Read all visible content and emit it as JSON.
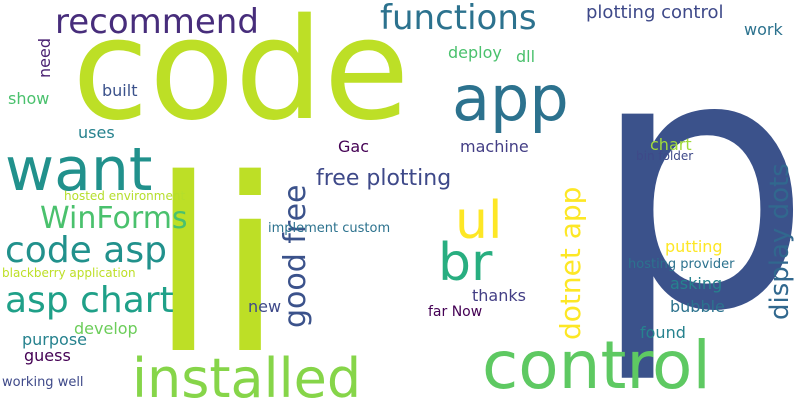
{
  "words": [
    {
      "text": "p",
      "color": "#3b528b"
    },
    {
      "text": "li",
      "color": "#bddf26"
    },
    {
      "text": "code",
      "color": "#bddf26"
    },
    {
      "text": "control",
      "color": "#5ec962"
    },
    {
      "text": "app",
      "color": "#2c728e"
    },
    {
      "text": "want",
      "color": "#21918c"
    },
    {
      "text": "installed",
      "color": "#86d549"
    },
    {
      "text": "ul",
      "color": "#fde725"
    },
    {
      "text": "br",
      "color": "#28ae80"
    },
    {
      "text": "functions",
      "color": "#2c728e"
    },
    {
      "text": "recommend",
      "color": "#472d7b"
    },
    {
      "text": "code asp",
      "color": "#21918c"
    },
    {
      "text": "asp chart",
      "color": "#1fa088"
    },
    {
      "text": "WinForms",
      "color": "#4ac16d"
    },
    {
      "text": "dotnet app",
      "color": "#fde725"
    },
    {
      "text": "display dots",
      "color": "#31688e"
    },
    {
      "text": "good free",
      "color": "#3b528b"
    },
    {
      "text": "free plotting",
      "color": "#3e4989"
    },
    {
      "text": "plotting control",
      "color": "#3e4989"
    },
    {
      "text": "deploy",
      "color": "#4ac16d"
    },
    {
      "text": "dll",
      "color": "#4ac16d"
    },
    {
      "text": "work",
      "color": "#2c728e"
    },
    {
      "text": "need",
      "color": "#481f70"
    },
    {
      "text": "show",
      "color": "#4ac16d"
    },
    {
      "text": "built",
      "color": "#3b528b"
    },
    {
      "text": "uses",
      "color": "#26828e"
    },
    {
      "text": "Gac",
      "color": "#440154"
    },
    {
      "text": "machine",
      "color": "#433e85"
    },
    {
      "text": "chart",
      "color": "#a0da39"
    },
    {
      "text": "bin folder",
      "color": "#3e4989"
    },
    {
      "text": "hosted environment",
      "color": "#b5de2b"
    },
    {
      "text": "implement custom",
      "color": "#2c728e"
    },
    {
      "text": "putting",
      "color": "#fde725"
    },
    {
      "text": "blackberry application",
      "color": "#bddf26"
    },
    {
      "text": "hosting provider",
      "color": "#2c728e"
    },
    {
      "text": "asking",
      "color": "#26828e"
    },
    {
      "text": "thanks",
      "color": "#433e85"
    },
    {
      "text": "new",
      "color": "#3e4989"
    },
    {
      "text": "bubble",
      "color": "#2c728e"
    },
    {
      "text": "far Now",
      "color": "#440154"
    },
    {
      "text": "purpose",
      "color": "#26828e"
    },
    {
      "text": "develop",
      "color": "#6ccd5a"
    },
    {
      "text": "found",
      "color": "#26828e"
    },
    {
      "text": "guess",
      "color": "#440154"
    },
    {
      "text": "working well",
      "color": "#3e4989"
    }
  ]
}
